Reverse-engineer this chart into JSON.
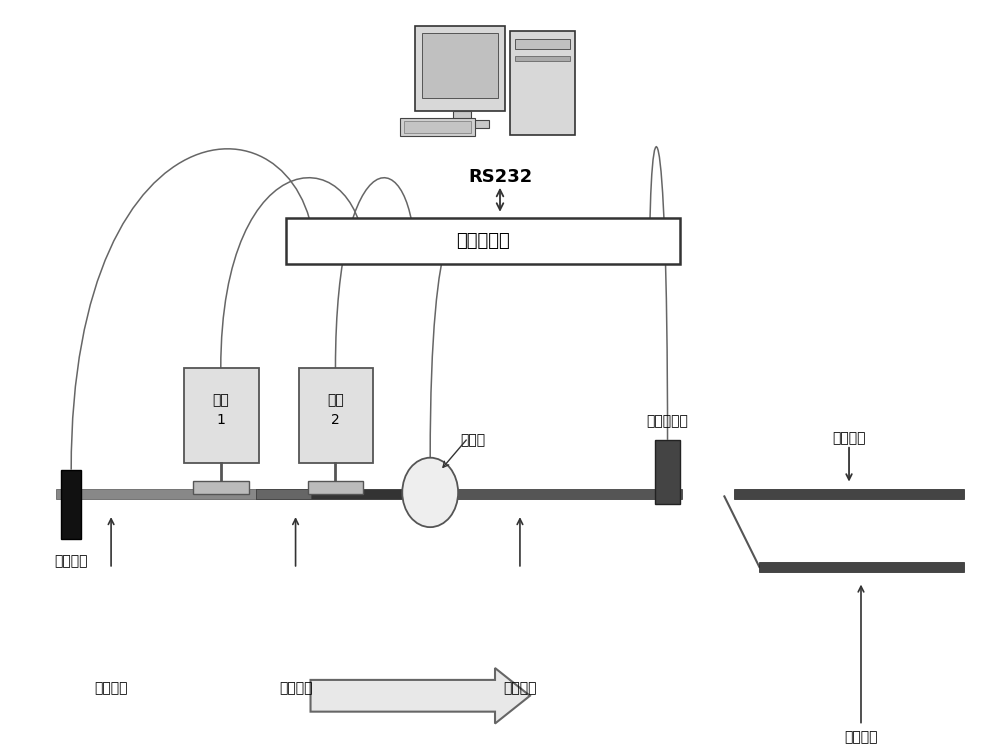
{
  "bg_color": "#ffffff",
  "text_color": "#000000",
  "computer_label": "RS232",
  "control_card_label": "单张控制卡",
  "trigger_label": "触发电眼",
  "camera1_label": "相机\n1",
  "camera2_label": "相机\n2",
  "encoder_label": "编码器",
  "blowoff_label": "吹气踢废口",
  "goodbelt_label": "好品皮带",
  "convey1_label": "传送皮带",
  "detect_label": "检测皮带",
  "convey2_label": "传送皮带",
  "waste_label": "收废皮带"
}
